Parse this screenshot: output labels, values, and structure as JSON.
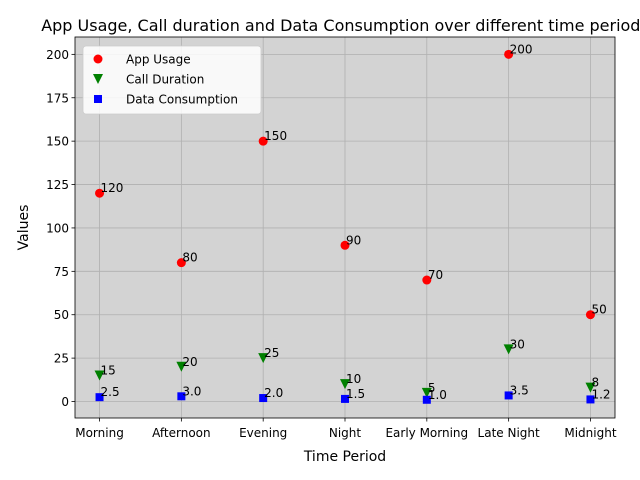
{
  "chart_data": {
    "type": "scatter",
    "title": "App Usage, Call duration and Data Consumption over different time periods",
    "xlabel": "Time Period",
    "ylabel": "Values",
    "categories": [
      "Morning",
      "Afternoon",
      "Evening",
      "Night",
      "Early Morning",
      "Late Night",
      "Midnight"
    ],
    "ylim": [
      -9.5,
      210
    ],
    "yticks": [
      0,
      25,
      50,
      75,
      100,
      125,
      150,
      175,
      200
    ],
    "grid": true,
    "background": "#d3d3d3",
    "legend_position": "upper-left",
    "series": [
      {
        "name": "App Usage",
        "marker": "circle",
        "color": "#ff0000",
        "values": [
          120,
          80,
          150,
          90,
          70,
          200,
          50
        ],
        "labels": [
          "120",
          "80",
          "150",
          "90",
          "70",
          "200",
          "50"
        ]
      },
      {
        "name": "Call Duration",
        "marker": "triangle-down",
        "color": "#008000",
        "values": [
          15,
          20,
          25,
          10,
          5,
          30,
          8
        ],
        "labels": [
          "15",
          "20",
          "25",
          "10",
          "5",
          "30",
          "8"
        ]
      },
      {
        "name": "Data Consumption",
        "marker": "square",
        "color": "#0000ff",
        "values": [
          2.5,
          3.0,
          2.0,
          1.5,
          1.0,
          3.5,
          1.2
        ],
        "labels": [
          "2.5",
          "3.0",
          "2.0",
          "1.5",
          "1.0",
          "3.5",
          "1.2"
        ]
      }
    ]
  }
}
